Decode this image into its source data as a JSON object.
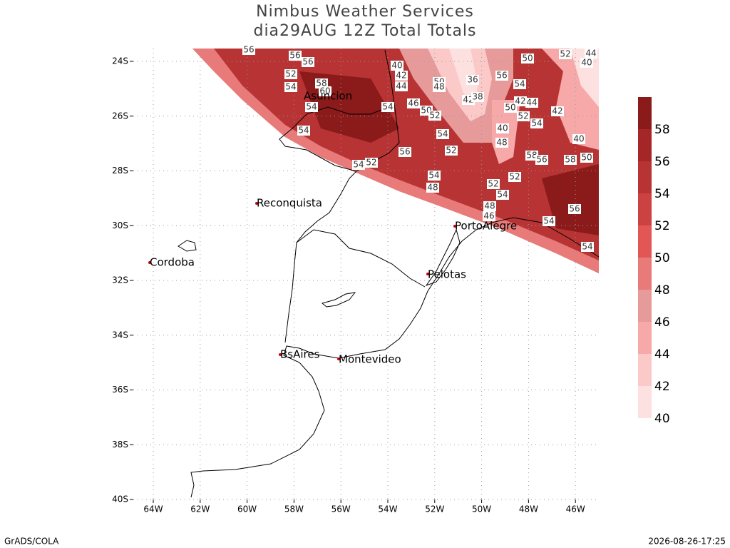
{
  "header": {
    "title": "Nimbus Weather Services",
    "subtitle": "dia29AUG 12Z Total Totals"
  },
  "map": {
    "xticks": [
      {
        "value": -64,
        "label": "64W"
      },
      {
        "value": -62,
        "label": "62W"
      },
      {
        "value": -60,
        "label": "60W"
      },
      {
        "value": -58,
        "label": "58W"
      },
      {
        "value": -56,
        "label": "56W"
      },
      {
        "value": -54,
        "label": "54W"
      },
      {
        "value": -52,
        "label": "52W"
      },
      {
        "value": -50,
        "label": "50W"
      },
      {
        "value": -48,
        "label": "48W"
      },
      {
        "value": -46,
        "label": "46W"
      }
    ],
    "yticks": [
      {
        "value": -24,
        "label": "24S"
      },
      {
        "value": -26,
        "label": "26S"
      },
      {
        "value": -28,
        "label": "28S"
      },
      {
        "value": -30,
        "label": "30S"
      },
      {
        "value": -32,
        "label": "32S"
      },
      {
        "value": -34,
        "label": "34S"
      },
      {
        "value": -36,
        "label": "36S"
      },
      {
        "value": -38,
        "label": "38S"
      },
      {
        "value": -40,
        "label": "40S"
      }
    ],
    "grid": true
  },
  "cities": [
    "Asuncion",
    "Reconquista",
    "Cordoba",
    "Pelotas",
    "PortoAlegre",
    "BsAires",
    "Montevideo"
  ],
  "contour_labels": [
    56,
    56,
    56,
    52,
    54,
    58,
    60,
    54,
    54,
    54,
    46,
    50,
    52,
    54,
    56,
    52,
    52,
    54,
    54,
    48,
    40,
    42,
    44,
    50,
    48,
    36,
    42,
    38,
    56,
    50,
    52,
    54,
    42,
    44,
    50,
    52,
    54,
    42,
    40,
    48,
    58,
    56,
    58,
    50,
    40,
    52,
    52,
    54,
    48,
    46,
    54,
    56,
    54,
    44,
    40
  ],
  "colorbar": {
    "levels": [
      40,
      42,
      44,
      46,
      48,
      50,
      52,
      54,
      56,
      58
    ],
    "colors": [
      "#fde1e1",
      "#fcc9c9",
      "#f7a9a9",
      "#e69a9a",
      "#e87a7a",
      "#e35656",
      "#cc4242",
      "#b83333",
      "#a52626",
      "#8b1a1a"
    ]
  },
  "footer": {
    "left": "GrADS/COLA",
    "right": "2026-08-26-17:25"
  }
}
